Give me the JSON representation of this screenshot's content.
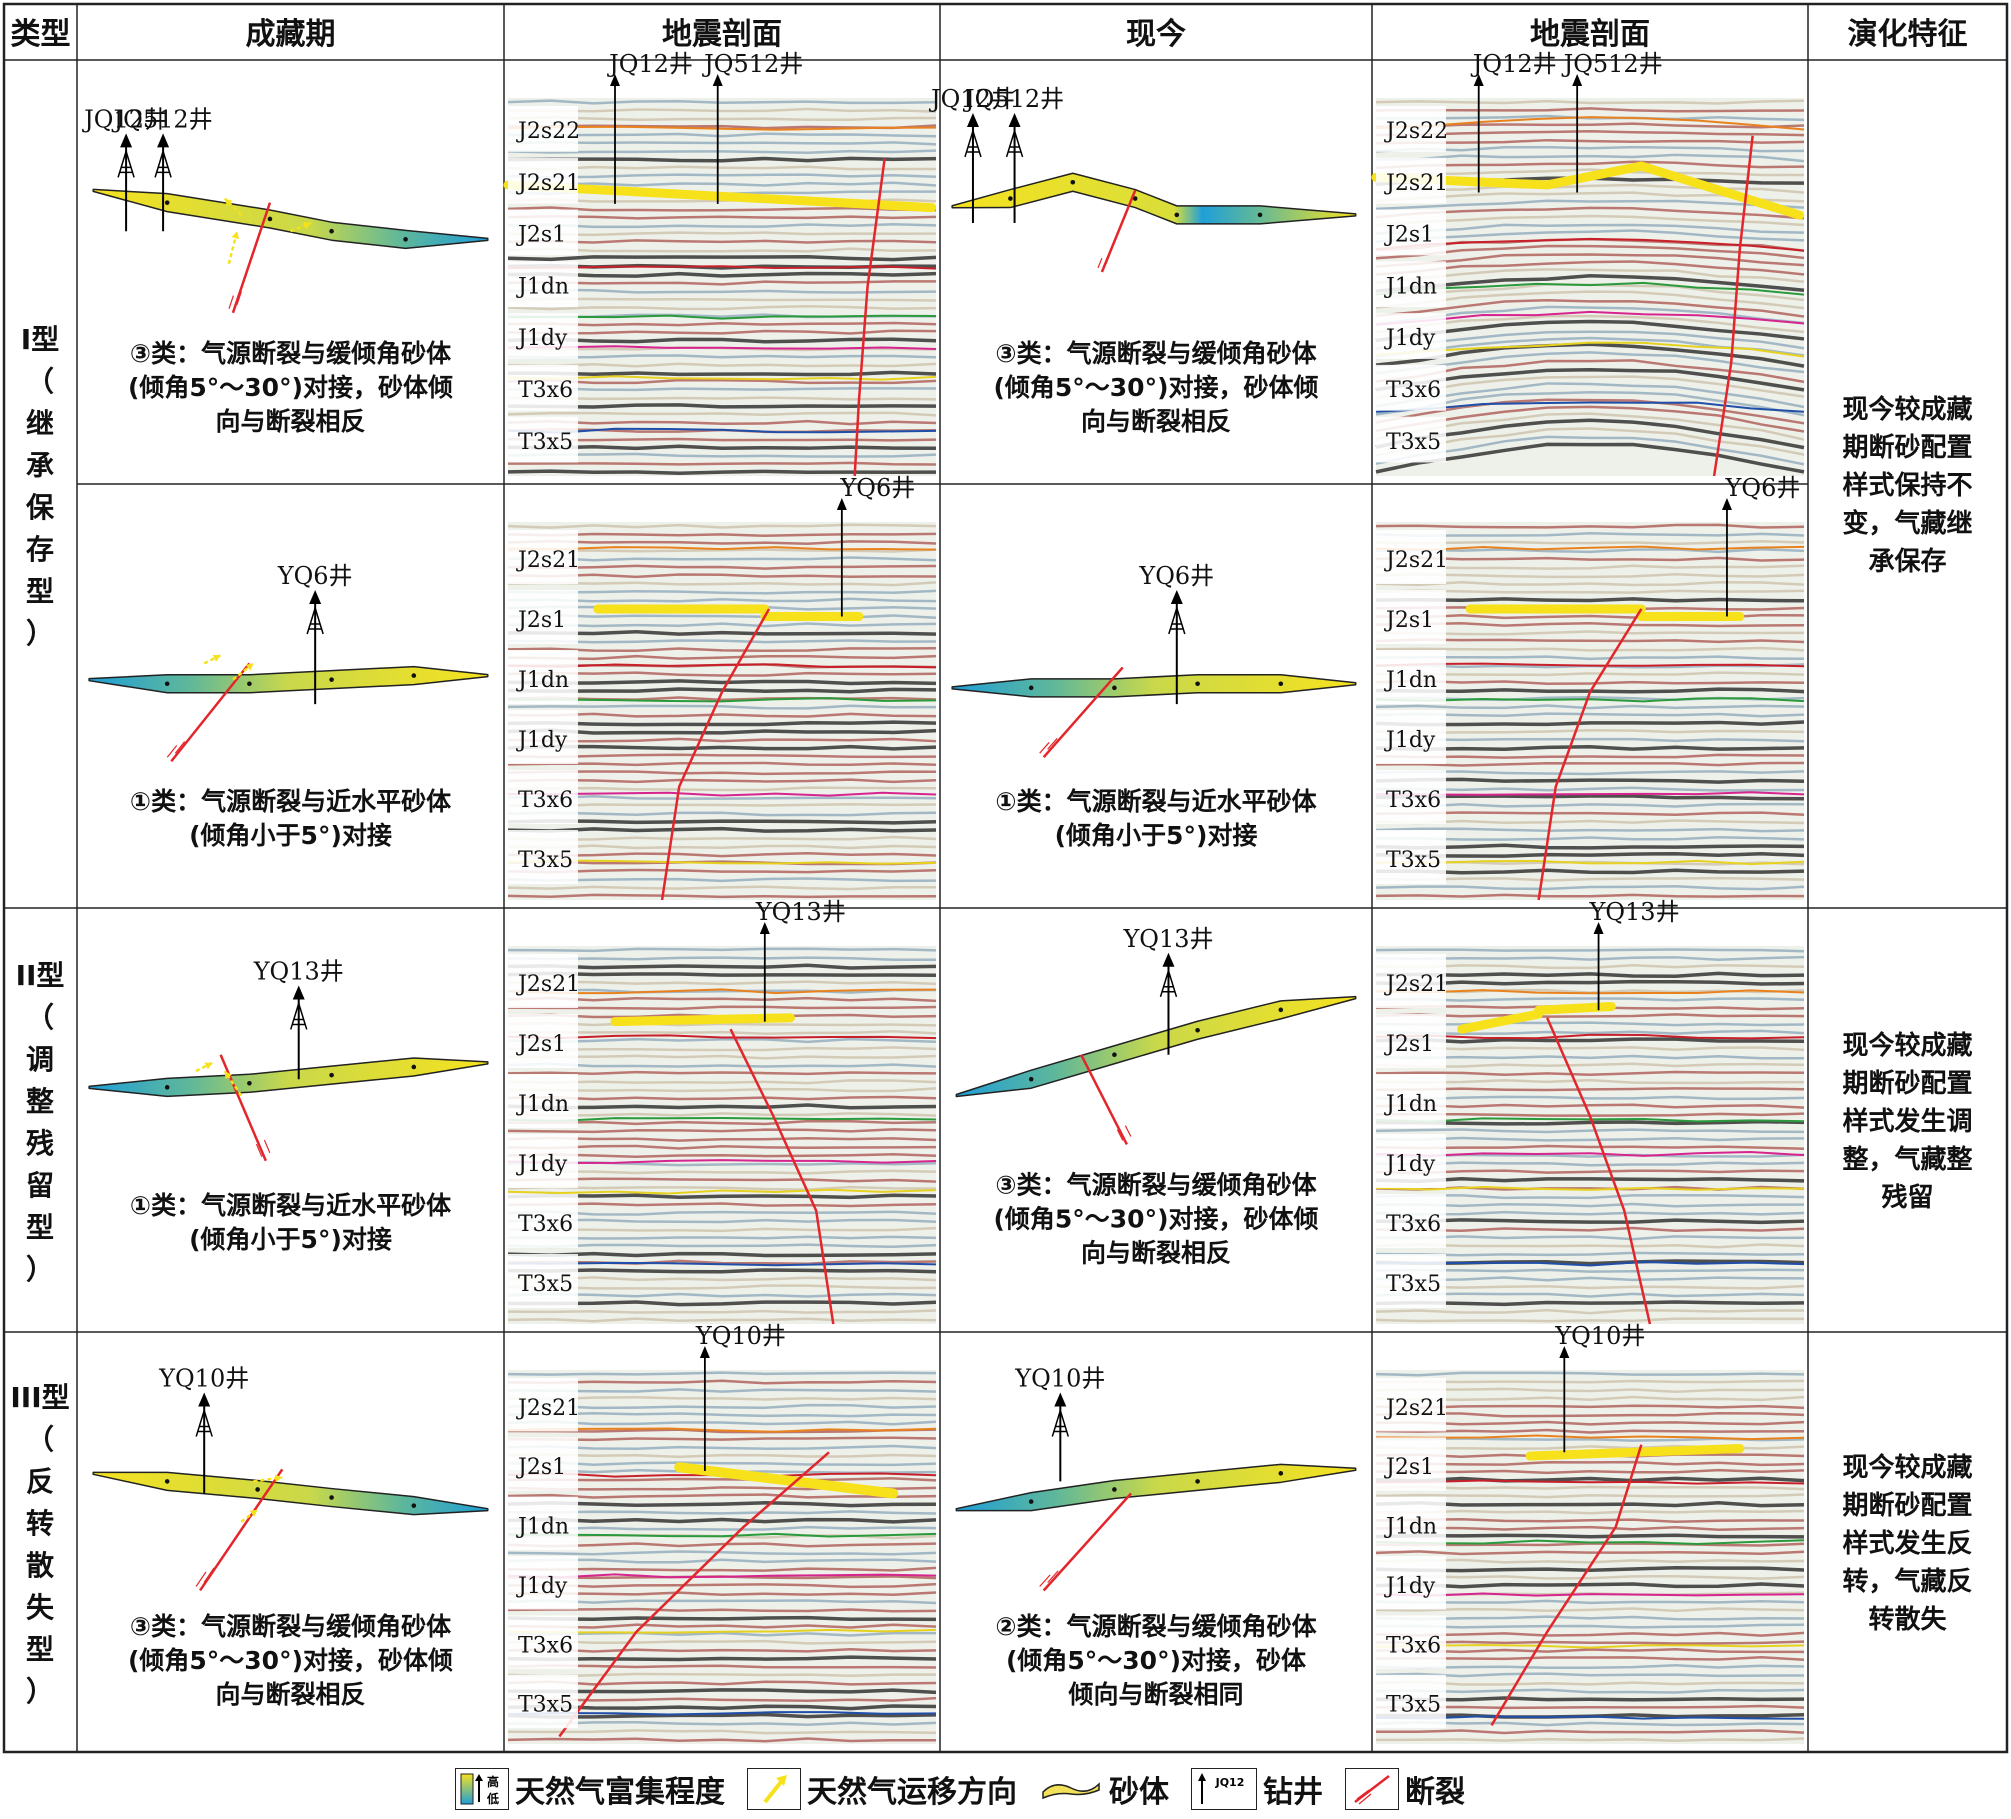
{
  "table": {
    "headers": [
      "类型",
      "成藏期",
      "地震剖面",
      "现今",
      "地震剖面",
      "演化特征"
    ],
    "rows": [
      {
        "type_label": "I型（继承保存型）",
        "type_chars": [
          "I型",
          "（",
          "继",
          "承",
          "保",
          "存",
          "型",
          "）"
        ],
        "evolution": [
          "现今较成藏",
          "期断砂配置",
          "样式保持不",
          "变，气藏继",
          "承保存"
        ],
        "sub": [
          {
            "period": {
              "wells": [
                "JQ12井",
                "JQ512井"
              ],
              "caption": [
                "③类：气源断裂与缓倾角砂体",
                "(倾角5°～30°)对接，砂体倾",
                "向与断裂相反"
              ]
            },
            "seis1": {
              "wells": [
                "JQ12井",
                "JQ512井"
              ],
              "strata": [
                "J2s22",
                "J2s21",
                "J2s1",
                "J1dn",
                "J1dy",
                "T3x6",
                "T3x5"
              ]
            },
            "present": {
              "wells": [
                "JQ12井",
                "JQ512井"
              ],
              "caption": [
                "③类：气源断裂与缓倾角砂体",
                "(倾角5°～30°)对接，砂体倾",
                "向与断裂相反"
              ]
            },
            "seis2": {
              "wells": [
                "JQ12井",
                "JQ512井"
              ],
              "strata": [
                "J2s22",
                "J2s21",
                "J2s1",
                "J1dn",
                "J1dy",
                "T3x6",
                "T3x5"
              ]
            }
          },
          {
            "period": {
              "wells": [
                "YQ6井"
              ],
              "caption": [
                "①类：气源断裂与近水平砂体",
                "(倾角小于5°)对接"
              ]
            },
            "seis1": {
              "wells": [
                "YQ6井"
              ],
              "strata": [
                "J2s21",
                "J2s1",
                "J1dn",
                "J1dy",
                "T3x6",
                "T3x5"
              ]
            },
            "present": {
              "wells": [
                "YQ6井"
              ],
              "caption": [
                "①类：气源断裂与近水平砂体",
                "(倾角小于5°)对接"
              ]
            },
            "seis2": {
              "wells": [
                "YQ6井"
              ],
              "strata": [
                "J2s21",
                "J2s1",
                "J1dn",
                "J1dy",
                "T3x6",
                "T3x5"
              ]
            }
          }
        ]
      },
      {
        "type_label": "II型（调整残留型）",
        "type_chars": [
          "II型",
          "（",
          "调",
          "整",
          "残",
          "留",
          "型",
          "）"
        ],
        "evolution": [
          "现今较成藏",
          "期断砂配置",
          "样式发生调",
          "整，气藏整",
          "残留"
        ],
        "sub": [
          {
            "period": {
              "wells": [
                "YQ13井"
              ],
              "caption": [
                "①类：气源断裂与近水平砂体",
                "(倾角小于5°)对接"
              ]
            },
            "seis1": {
              "wells": [
                "YQ13井"
              ],
              "strata": [
                "J2s21",
                "J2s1",
                "J1dn",
                "J1dy",
                "T3x6",
                "T3x5"
              ]
            },
            "present": {
              "wells": [
                "YQ13井"
              ],
              "caption": [
                "③类：气源断裂与缓倾角砂体",
                "(倾角5°～30°)对接，砂体倾",
                "向与断裂相反"
              ]
            },
            "seis2": {
              "wells": [
                "YQ13井"
              ],
              "strata": [
                "J2s21",
                "J2s1",
                "J1dn",
                "J1dy",
                "T3x6",
                "T3x5"
              ]
            }
          }
        ]
      },
      {
        "type_label": "III型（反转散失型）",
        "type_chars": [
          "III型",
          "（",
          "反",
          "转",
          "散",
          "失",
          "型",
          "）"
        ],
        "evolution": [
          "现今较成藏",
          "期断砂配置",
          "样式发生反",
          "转，气藏反",
          "转散失"
        ],
        "sub": [
          {
            "period": {
              "wells": [
                "YQ10井"
              ],
              "caption": [
                "③类：气源断裂与缓倾角砂体",
                "(倾角5°～30°)对接，砂体倾",
                "向与断裂相反"
              ]
            },
            "seis1": {
              "wells": [
                "YQ10井"
              ],
              "strata": [
                "J2s21",
                "J2s1",
                "J1dn",
                "J1dy",
                "T3x6",
                "T3x5"
              ]
            },
            "present": {
              "wells": [
                "YQ10井"
              ],
              "caption": [
                "②类：气源断裂与缓倾角砂体",
                "(倾角5°～30°)对接，砂体",
                "倾向与断裂相同"
              ]
            },
            "seis2": {
              "wells": [
                "YQ10井"
              ],
              "strata": [
                "J2s21",
                "J2s1",
                "J1dn",
                "J1dy",
                "T3x6",
                "T3x5"
              ]
            }
          }
        ]
      }
    ]
  },
  "legend": {
    "enrichment": "天然气富集程度",
    "enrichment_high": "高",
    "enrichment_low": "低",
    "migration": "天然气运移方向",
    "sandbody": "砂体",
    "well": "钻井",
    "well_sample": "JQ12",
    "fault": "断裂"
  },
  "colors": {
    "fault": "#e3262b",
    "gas_yellow": "#f6e21f",
    "gas_blue": "#1f9fd8",
    "horizon_orange": "#e8821e",
    "horizon_red": "#c8202a",
    "horizon_green": "#2a9a3c",
    "horizon_pink": "#d6258f",
    "horizon_yellow": "#e6d21e",
    "horizon_blue": "#1f4fa8"
  }
}
